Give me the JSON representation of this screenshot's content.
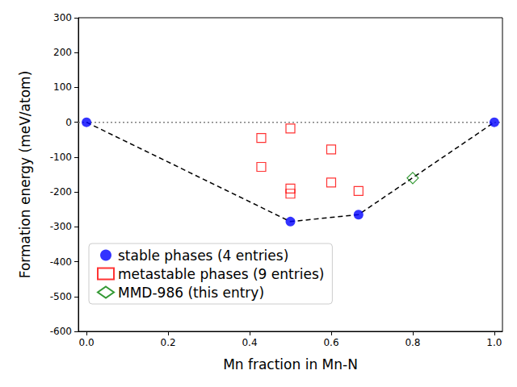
{
  "chart_data": {
    "type": "scatter",
    "x_label": "Mn fraction in Mn-N",
    "y_label": "Formation energy (meV/atom)",
    "xlim": [
      -0.02,
      1.02
    ],
    "xticks": [
      {
        "value": 0,
        "label": "0.0"
      },
      {
        "value": 0.2,
        "label": "0.2"
      },
      {
        "value": 0.4,
        "label": "0.4"
      },
      {
        "value": 0.6,
        "label": "0.6"
      },
      {
        "value": 0.8,
        "label": "0.8"
      },
      {
        "value": 1,
        "label": "1.0"
      }
    ],
    "ylim": [
      -600,
      300
    ],
    "yticks": [
      -600,
      -500,
      -400,
      -300,
      -200,
      -100,
      0,
      100,
      200,
      300
    ],
    "grid": false,
    "legend": "lower left",
    "series": [
      {
        "type": "line",
        "line_style": "dotted",
        "color": "#808080",
        "x": [
          -0.02,
          1.02
        ],
        "values": [
          0,
          0
        ]
      },
      {
        "type": "line",
        "line_style": "dashed",
        "color": "#000000",
        "x": [
          0,
          0.5,
          0.667,
          1
        ],
        "values": [
          0,
          -285,
          -265,
          0
        ]
      },
      {
        "type": "scatter",
        "name": "stable phases (4 entries)",
        "marker": "circle",
        "color": "#0000ff",
        "x": [
          0,
          0.5,
          0.667,
          1
        ],
        "values": [
          0,
          -285,
          -265,
          0
        ]
      },
      {
        "type": "scatter",
        "name": "metastable phases (9 entries)",
        "marker": "square_open",
        "color": "#ff0000",
        "x": [
          0.4286,
          0.4286,
          0.5,
          0.5,
          0.5,
          0.6,
          0.6,
          0.667
        ],
        "values": [
          -45,
          -128,
          -18,
          -190,
          -205,
          -78,
          -173,
          -197
        ]
      },
      {
        "type": "scatter",
        "name": "MMD-986 (this entry)",
        "marker": "diamond_open",
        "color": "#008000",
        "x": [
          0.8
        ],
        "values": [
          -160
        ]
      }
    ]
  }
}
